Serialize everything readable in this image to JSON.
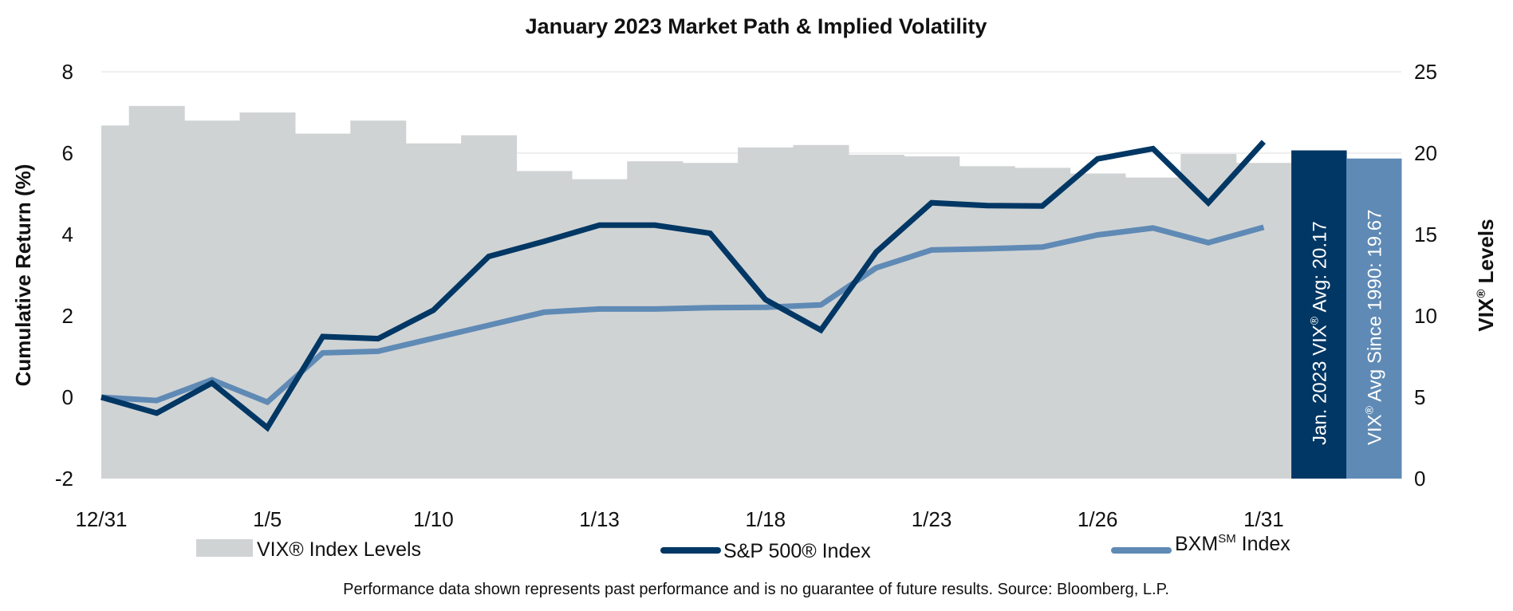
{
  "chart_data": {
    "type": "bar+line",
    "title": "January 2023 Market Path & Implied Volatility",
    "ylabel_left": "Cumulative Return (%)",
    "ylabel_right_main": "VIX",
    "ylabel_right_sup": "®",
    "ylabel_right_rest": " Levels",
    "ylim_left": [
      -2,
      8
    ],
    "yticks_left": [
      "-2",
      "0",
      "2",
      "4",
      "6",
      "8"
    ],
    "ylim_right": [
      0,
      25
    ],
    "yticks_right": [
      "0",
      "5",
      "10",
      "15",
      "20",
      "25"
    ],
    "grid": true,
    "x": [
      "12/31",
      "1/3",
      "1/4",
      "1/5",
      "1/6",
      "1/9",
      "1/10",
      "1/11",
      "1/12",
      "1/13",
      "1/16",
      "1/17",
      "1/18",
      "1/19",
      "1/20",
      "1/23",
      "1/24",
      "1/25",
      "1/26",
      "1/27",
      "1/30",
      "1/31"
    ],
    "xtick_labels": [
      "12/31",
      "1/5",
      "1/10",
      "1/13",
      "1/18",
      "1/23",
      "1/26",
      "1/31"
    ],
    "series": [
      {
        "name": "VIX® Index Levels",
        "type": "bar",
        "axis": "right",
        "color": "#d0d3d4",
        "values": [
          21.7,
          22.9,
          22.0,
          22.5,
          21.2,
          22.0,
          20.6,
          21.1,
          18.9,
          18.4,
          19.5,
          19.4,
          20.35,
          20.5,
          19.9,
          19.8,
          19.2,
          19.1,
          18.75,
          18.5,
          19.95,
          19.4
        ]
      },
      {
        "name": "S&P 500® Index",
        "type": "line",
        "axis": "left",
        "color": "#003764",
        "values": [
          0.0,
          -0.39,
          0.35,
          -0.75,
          1.49,
          1.44,
          2.14,
          3.46,
          3.83,
          4.23,
          4.23,
          4.03,
          2.4,
          1.65,
          3.57,
          4.78,
          4.71,
          4.7,
          5.86,
          6.11,
          4.78,
          6.28
        ]
      },
      {
        "name": "BXM Index",
        "type": "line",
        "axis": "left",
        "color": "#5f8ab5",
        "values": [
          0.0,
          -0.08,
          0.43,
          -0.12,
          1.09,
          1.13,
          1.45,
          1.77,
          2.09,
          2.17,
          2.17,
          2.2,
          2.21,
          2.27,
          3.18,
          3.62,
          3.65,
          3.69,
          3.99,
          4.16,
          3.8,
          4.18
        ]
      }
    ],
    "average_bars": [
      {
        "value": 20.17,
        "color": "#003764",
        "label_pre": "Jan. 2023 VIX",
        "label_sup": "®",
        "label_post": "  Avg: 20.17"
      },
      {
        "value": 19.67,
        "color": "#5f8ab5",
        "label_pre": "VIX",
        "label_sup": "®",
        "label_post": " Avg Since 1990: 19.67"
      }
    ],
    "legend": {
      "placement": "bottom",
      "vix": "VIX® Index Levels",
      "sp": "S&P 500® Index",
      "bxm_main": "BXM",
      "bxm_sup": "SM",
      "bxm_rest": " Index"
    },
    "footnote": "Performance data shown represents past performance and is no guarantee of future results. Source: Bloomberg, L.P."
  }
}
